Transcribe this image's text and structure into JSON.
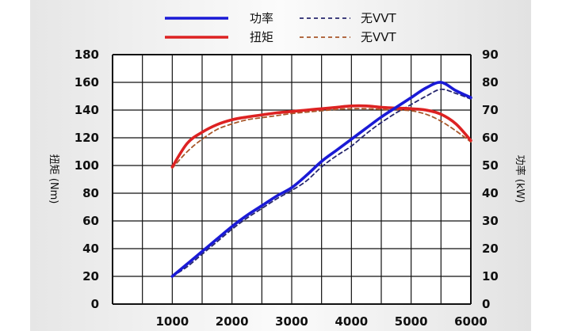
{
  "chart_data": {
    "type": "line",
    "x": [
      1000,
      1250,
      1500,
      1750,
      2000,
      2250,
      2500,
      2750,
      3000,
      3250,
      3500,
      3750,
      4000,
      4250,
      4500,
      4750,
      5000,
      5250,
      5500,
      5750,
      6000
    ],
    "xticks": [
      "1000",
      "2000",
      "3000",
      "4000",
      "5000",
      "6000"
    ],
    "xlim": [
      0,
      6000
    ],
    "ylabel_left": "扭矩 (Nm)",
    "ylim_left": [
      0,
      180
    ],
    "yticks_left": [
      "0",
      "20",
      "40",
      "60",
      "80",
      "100",
      "120",
      "140",
      "160",
      "180"
    ],
    "ylabel_right": "功率 (kW)",
    "ylim_right": [
      0,
      90
    ],
    "yticks_right": [
      "0",
      "10",
      "20",
      "30",
      "40",
      "50",
      "60",
      "70",
      "80",
      "90"
    ],
    "grid": true,
    "legend_position": "top-center",
    "series": [
      {
        "name": "功率",
        "axis": "right",
        "style": "solid",
        "color": "#1a1ad6",
        "values": [
          10,
          14.5,
          19,
          23.5,
          28,
          32,
          35.5,
          39,
          42,
          46.5,
          51.5,
          55.5,
          59.5,
          63.5,
          67.5,
          71,
          74.5,
          78,
          80,
          77,
          74.5
        ]
      },
      {
        "name": "无VVT",
        "axis": "right",
        "style": "dashed",
        "color": "#27276e",
        "values": [
          10,
          13.5,
          18,
          22.5,
          27,
          31,
          34.5,
          38,
          41,
          44.5,
          49.5,
          53.5,
          57,
          61.5,
          65.5,
          69,
          72,
          75,
          77.5,
          76,
          74
        ]
      },
      {
        "name": "扭矩",
        "axis": "left",
        "style": "solid",
        "color": "#dd2222",
        "values": [
          99,
          116,
          124,
          129.5,
          133,
          135,
          136.5,
          138,
          139,
          140,
          141,
          142,
          143,
          143,
          142,
          141.5,
          141,
          140,
          137,
          130,
          118
        ]
      },
      {
        "name": "无VVT",
        "axis": "left",
        "style": "dashed",
        "color": "#a8572a",
        "values": [
          98,
          110,
          119,
          126,
          130,
          133,
          134.5,
          136,
          137.5,
          138.5,
          139.5,
          140.5,
          141,
          141,
          140.5,
          140,
          139.5,
          137,
          132,
          125,
          117
        ]
      }
    ],
    "legend": [
      {
        "label": "功率",
        "series": 0
      },
      {
        "label": "无VVT",
        "series": 1
      },
      {
        "label": "扭矩",
        "series": 2
      },
      {
        "label": "无VVT",
        "series": 3
      }
    ]
  }
}
